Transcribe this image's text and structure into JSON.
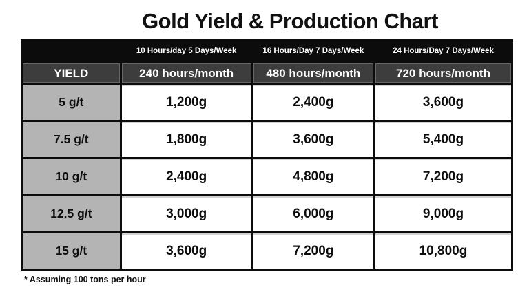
{
  "title": "Gold Yield & Production Chart",
  "footnote": "* Assuming 100 tons per hour",
  "colors": {
    "header_black": "#0c0c0c",
    "header_dark_gray": "#3d3d3d",
    "yield_gray": "#b4b4b4",
    "cell_white": "#ffffff",
    "text_dark": "#111111",
    "text_white": "#ffffff"
  },
  "chart_data": {
    "type": "table",
    "title": "Gold Yield & Production Chart",
    "schedule_headers": [
      "10 Hours/day 5 Days/Week",
      "16 Hours/Day 7 Days/Week",
      "24 Hours/Day 7 Days/Week"
    ],
    "columns": [
      "YIELD",
      "240 hours/month",
      "480 hours/month",
      "720 hours/month"
    ],
    "rows": [
      [
        "5 g/t",
        "1,200g",
        "2,400g",
        "3,600g"
      ],
      [
        "7.5 g/t",
        "1,800g",
        "3,600g",
        "5,400g"
      ],
      [
        "10 g/t",
        "2,400g",
        "4,800g",
        "7,200g"
      ],
      [
        "12.5 g/t",
        "3,000g",
        "6,000g",
        "9,000g"
      ],
      [
        "15 g/t",
        "3,600g",
        "7,200g",
        "10,800g"
      ]
    ],
    "yields_g_per_ton": [
      5,
      7.5,
      10,
      12.5,
      15
    ],
    "hours_per_month": [
      240,
      480,
      720
    ],
    "production_g": [
      [
        1200,
        2400,
        3600
      ],
      [
        1800,
        3600,
        5400
      ],
      [
        2400,
        4800,
        7200
      ],
      [
        3000,
        6000,
        9000
      ],
      [
        3600,
        7200,
        10800
      ]
    ],
    "footnote": "* Assuming 100 tons per hour"
  }
}
